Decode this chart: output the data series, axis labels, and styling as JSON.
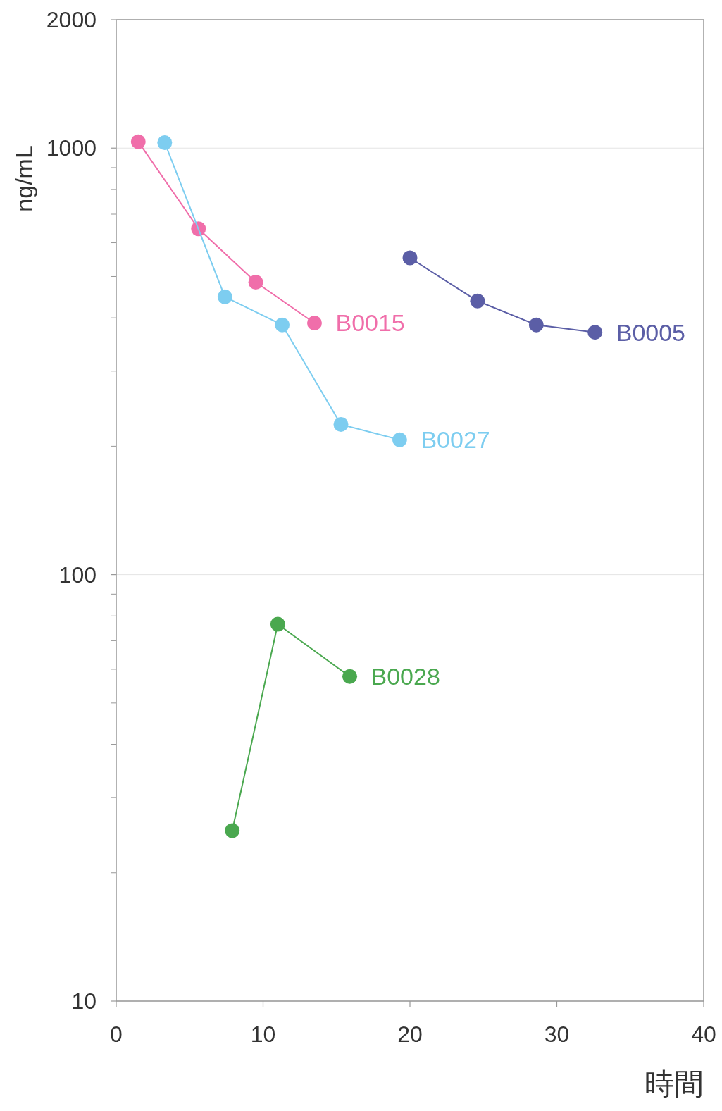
{
  "chart_data": {
    "type": "line",
    "xlabel": "時間",
    "ylabel": "ng/mL",
    "log": "y",
    "grid": "y",
    "marker": "circle",
    "line_style": "solid",
    "xlim": [
      0,
      40
    ],
    "xticks": [
      0,
      10,
      20,
      30,
      40
    ],
    "ylim": [
      10,
      2000
    ],
    "yticks": [
      10,
      100,
      1000,
      2000
    ],
    "series": [
      {
        "name": "B0015",
        "color": "#f06eaa",
        "x": [
          1.5,
          5.6,
          9.5,
          13.5
        ],
        "values": [
          1035,
          647,
          485,
          389
        ]
      },
      {
        "name": "B0027",
        "color": "#7dcdf0",
        "x": [
          3.3,
          7.4,
          11.3,
          15.3,
          19.3
        ],
        "values": [
          1030,
          448,
          385,
          225,
          207
        ]
      },
      {
        "name": "B0005",
        "color": "#5b5ea6",
        "x": [
          20.0,
          24.6,
          28.6,
          32.6
        ],
        "values": [
          553,
          438,
          385,
          370
        ]
      },
      {
        "name": "B0028",
        "color": "#4aa84f",
        "x": [
          7.9,
          11.0,
          15.9
        ],
        "values": [
          25.1,
          76.5,
          57.7
        ]
      }
    ]
  }
}
